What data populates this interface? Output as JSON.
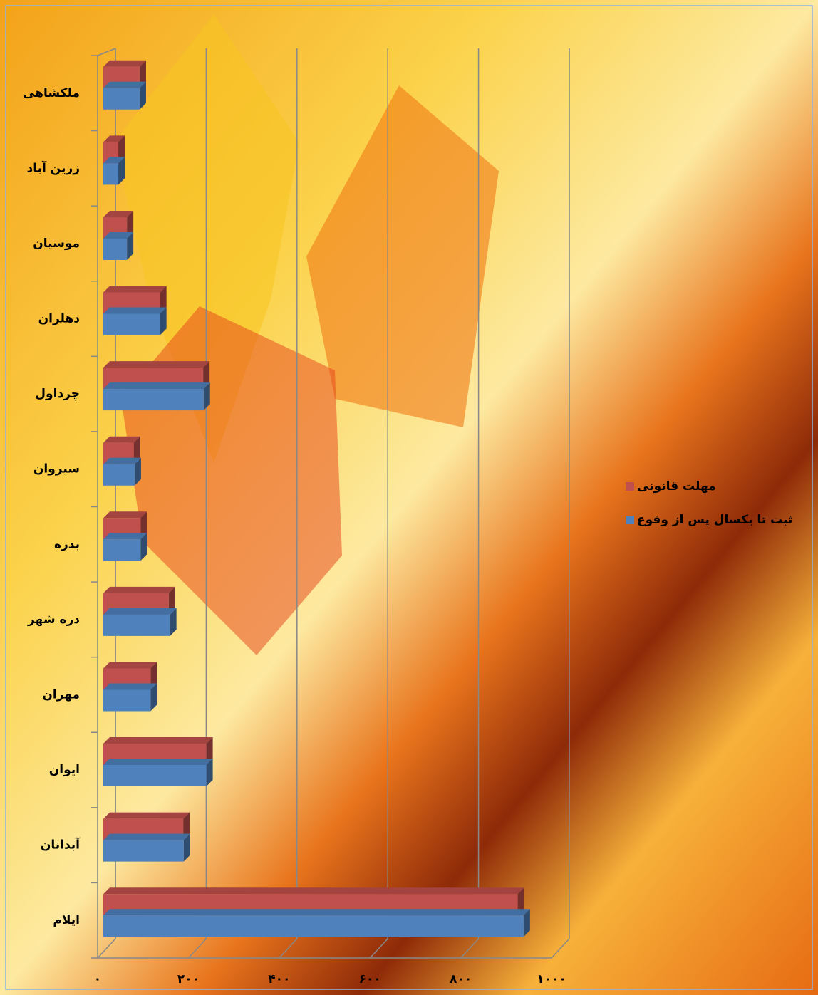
{
  "chart_data": {
    "type": "bar3d",
    "categories": [
      "ملکشاهی",
      "زرین آباد",
      "موسیان",
      "دهلران",
      "چرداول",
      "سیروان",
      "بدره",
      "دره شهر",
      "مهران",
      "ایوان",
      "آبدانان",
      "ایلام"
    ],
    "series": [
      {
        "name": "مهلت قانونی",
        "color": "#c0504d",
        "values": [
          80,
          33,
          52,
          125,
          220,
          67,
          82,
          144,
          104,
          227,
          176,
          913
        ]
      },
      {
        "name": "ثبت تا یکسال پس از وقوع",
        "color": "#4f81bd",
        "values": [
          80,
          33,
          52,
          125,
          221,
          69,
          82,
          147,
          104,
          227,
          177,
          926
        ]
      }
    ],
    "xlim": [
      0,
      1000
    ],
    "xticks": [
      {
        "value": 0,
        "label": "۰"
      },
      {
        "value": 200,
        "label": "۲۰۰"
      },
      {
        "value": 400,
        "label": "۴۰۰"
      },
      {
        "value": 600,
        "label": "۶۰۰"
      },
      {
        "value": 800,
        "label": "۸۰۰"
      },
      {
        "value": 1000,
        "label": "۱۰۰۰"
      }
    ],
    "grid": true
  }
}
